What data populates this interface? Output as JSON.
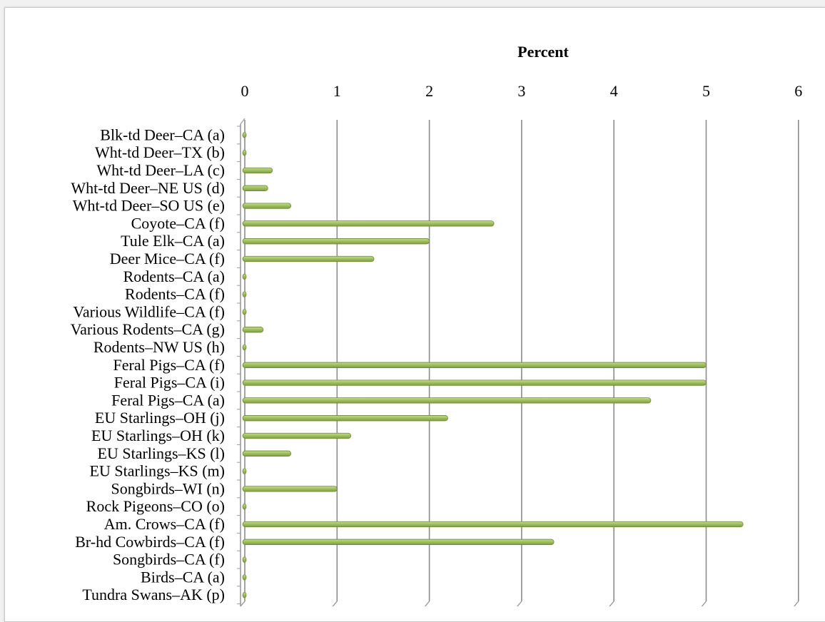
{
  "chart_data": {
    "type": "bar",
    "orientation": "horizontal",
    "title": "Percent",
    "xlabel": "Percent",
    "ylabel": "",
    "xlim": [
      0,
      6
    ],
    "ticks": [
      "0",
      "1",
      "2",
      "3",
      "4",
      "5",
      "6"
    ],
    "tick_values": [
      0,
      1,
      2,
      3,
      4,
      5,
      6
    ],
    "axis_position": "top",
    "grid": true,
    "legend": "none",
    "bar_color": "#9bbb59",
    "bar_edge_color": "#6f8a36",
    "grid_color": "#8c8c8c",
    "categories": [
      "Blk-td Deer–CA (a)",
      "Wht-td Deer–TX (b)",
      "Wht-td Deer–LA (c)",
      "Wht-td Deer–NE US (d)",
      "Wht-td Deer–SO US (e)",
      "Coyote–CA (f)",
      "Tule Elk–CA (a)",
      "Deer Mice–CA (f)",
      "Rodents–CA (a)",
      "Rodents–CA (f)",
      "Various Wildlife–CA (f)",
      "Various Rodents–CA (g)",
      "Rodents–NW US (h)",
      "Feral Pigs–CA (f)",
      "Feral Pigs–CA (i)",
      "Feral Pigs–CA (a)",
      "EU Starlings–OH (j)",
      "EU Starlings–OH (k)",
      "EU Starlings–KS (l)",
      "EU Starlings–KS (m)",
      "Songbirds–WI (n)",
      "Rock Pigeons–CO (o)",
      "Am. Crows–CA (f)",
      "Br-hd Cowbirds–CA (f)",
      "Songbirds–CA (f)",
      "Birds–CA (a)",
      "Tundra Swans–AK (p)"
    ],
    "values": [
      0,
      0,
      0.3,
      0.25,
      0.5,
      2.7,
      2.0,
      1.4,
      0,
      0,
      0,
      0.2,
      0,
      5.0,
      5.0,
      4.4,
      2.2,
      1.15,
      0.5,
      0,
      1.0,
      0,
      5.4,
      3.35,
      0,
      0,
      0
    ]
  }
}
